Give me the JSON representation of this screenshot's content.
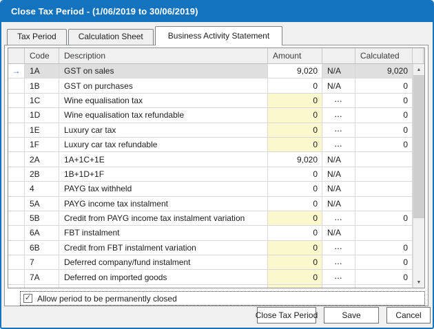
{
  "window": {
    "title": "Close Tax Period - (1/06/2019 to 30/06/2019)"
  },
  "tabs": {
    "items": [
      {
        "label": "Tax Period"
      },
      {
        "label": "Calculation Sheet"
      },
      {
        "label": "Business Activity Statement"
      }
    ],
    "active_index": 2
  },
  "grid": {
    "columns": {
      "indicator": "",
      "code": "Code",
      "description": "Description",
      "amount": "Amount",
      "mid": "",
      "calculated": "Calculated"
    },
    "selection_arrow_glyph": "→",
    "rows": [
      {
        "code": "1A",
        "description": "GST on sales",
        "amount": "9,020",
        "mid": "N/A",
        "mid_type": "na",
        "calculated": "9,020",
        "selected": true,
        "amount_yellow": false
      },
      {
        "code": "1B",
        "description": "GST on purchases",
        "amount": "0",
        "mid": "N/A",
        "mid_type": "na",
        "calculated": "0",
        "selected": false,
        "amount_yellow": false
      },
      {
        "code": "1C",
        "description": "Wine equalisation tax",
        "amount": "0",
        "mid": "...",
        "mid_type": "button",
        "calculated": "0",
        "selected": false,
        "amount_yellow": true
      },
      {
        "code": "1D",
        "description": "Wine equalisation tax refundable",
        "amount": "0",
        "mid": "...",
        "mid_type": "button",
        "calculated": "0",
        "selected": false,
        "amount_yellow": true
      },
      {
        "code": "1E",
        "description": "Luxury car tax",
        "amount": "0",
        "mid": "...",
        "mid_type": "button",
        "calculated": "0",
        "selected": false,
        "amount_yellow": true
      },
      {
        "code": "1F",
        "description": "Luxury car tax refundable",
        "amount": "0",
        "mid": "...",
        "mid_type": "button",
        "calculated": "0",
        "selected": false,
        "amount_yellow": true
      },
      {
        "code": "2A",
        "description": "1A+1C+1E",
        "amount": "9,020",
        "mid": "N/A",
        "mid_type": "na",
        "calculated": "",
        "selected": false,
        "amount_yellow": false
      },
      {
        "code": "2B",
        "description": "1B+1D+1F",
        "amount": "0",
        "mid": "N/A",
        "mid_type": "na",
        "calculated": "",
        "selected": false,
        "amount_yellow": false
      },
      {
        "code": "4",
        "description": "PAYG tax withheld",
        "amount": "0",
        "mid": "N/A",
        "mid_type": "na",
        "calculated": "",
        "selected": false,
        "amount_yellow": false
      },
      {
        "code": "5A",
        "description": "PAYG income tax instalment",
        "amount": "0",
        "mid": "N/A",
        "mid_type": "na",
        "calculated": "",
        "selected": false,
        "amount_yellow": false
      },
      {
        "code": "5B",
        "description": "Credit from PAYG income tax instalment variation",
        "amount": "0",
        "mid": "...",
        "mid_type": "button",
        "calculated": "0",
        "selected": false,
        "amount_yellow": true
      },
      {
        "code": "6A",
        "description": "FBT instalment",
        "amount": "0",
        "mid": "N/A",
        "mid_type": "na",
        "calculated": "",
        "selected": false,
        "amount_yellow": false
      },
      {
        "code": "6B",
        "description": "Credit from FBT instalment variation",
        "amount": "0",
        "mid": "...",
        "mid_type": "button",
        "calculated": "0",
        "selected": false,
        "amount_yellow": true
      },
      {
        "code": "7",
        "description": "Deferred company/fund instalment",
        "amount": "0",
        "mid": "...",
        "mid_type": "button",
        "calculated": "0",
        "selected": false,
        "amount_yellow": true
      },
      {
        "code": "7A",
        "description": "Deferred on imported goods",
        "amount": "0",
        "mid": "...",
        "mid_type": "button",
        "calculated": "0",
        "selected": false,
        "amount_yellow": true
      }
    ]
  },
  "scrollbar": {
    "up_glyph": "▲",
    "down_glyph": "▼"
  },
  "footer": {
    "checkbox": {
      "checked": true,
      "check_glyph": "✓",
      "label": "Allow period to be permanently closed"
    },
    "buttons": [
      {
        "label": "Close Tax Period"
      },
      {
        "label": "Save"
      },
      {
        "label": "Cancel"
      }
    ]
  },
  "colors": {
    "titlebar": "#1373BE",
    "dialog_border": "#1373BE",
    "row_selected_bg": "#DFDFDF",
    "editable_cell_bg": "#FCF8CE",
    "accent_arrow": "#2E79BD"
  }
}
